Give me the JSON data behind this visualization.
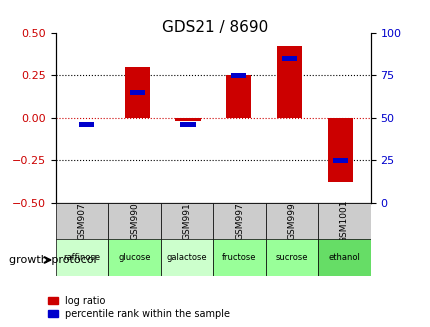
{
  "title": "GDS21 / 8690",
  "samples": [
    "GSM907",
    "GSM990",
    "GSM991",
    "GSM997",
    "GSM999",
    "GSM1001"
  ],
  "protocols": [
    "raffinose",
    "glucose",
    "galactose",
    "fructose",
    "sucrose",
    "ethanol"
  ],
  "log_ratio": [
    0.0,
    0.3,
    -0.02,
    0.25,
    0.42,
    -0.38
  ],
  "percentile": [
    46,
    65,
    46,
    75,
    85,
    25
  ],
  "bar_color": "#cc0000",
  "blue_color": "#0000cc",
  "bg_color": "#ffffff",
  "left_ylim": [
    -0.5,
    0.5
  ],
  "right_ylim": [
    0,
    100
  ],
  "left_yticks": [
    -0.5,
    -0.25,
    0.0,
    0.25,
    0.5
  ],
  "right_yticks": [
    0,
    25,
    50,
    75,
    100
  ],
  "protocol_colors": [
    "#ccffcc",
    "#99ff99",
    "#ccffcc",
    "#99ff99",
    "#99ff99",
    "#66dd66"
  ],
  "title_color": "#000000",
  "left_tick_color": "#cc0000",
  "right_tick_color": "#0000cc",
  "bar_width": 0.5,
  "growth_label": "growth protocol",
  "sample_box_color": "#cccccc",
  "hline_values": [
    0.25,
    -0.25
  ],
  "zero_line_color": "#cc0000",
  "dotted_line_color": "#000000"
}
